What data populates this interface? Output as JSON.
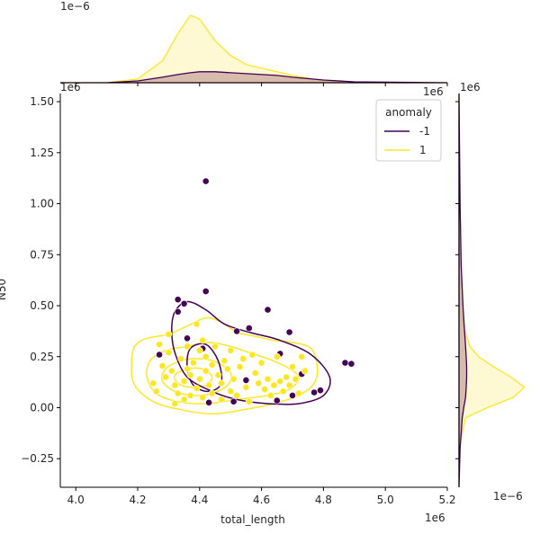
{
  "chart_data": {
    "type": "scatter",
    "title": "",
    "xlabel": "total_length",
    "ylabel": "N50",
    "xlim": [
      3950000,
      5200000
    ],
    "ylim": [
      -390000,
      1540000
    ],
    "x_ticks": [
      4000000,
      4200000,
      4400000,
      4600000,
      4800000,
      5000000,
      5200000
    ],
    "x_tick_labels": [
      "4.0",
      "4.2",
      "4.4",
      "4.6",
      "4.8",
      "5.0",
      "5.2"
    ],
    "y_ticks": [
      -250000,
      0,
      250000,
      500000,
      750000,
      1000000,
      1250000,
      1500000
    ],
    "y_tick_labels": [
      "−0.25",
      "0.00",
      "0.25",
      "0.50",
      "0.75",
      "1.00",
      "1.25",
      "1.50"
    ],
    "x_offset_label": "1e6",
    "y_offset_label": "1e6",
    "top_offset_label": "1e−6",
    "right_offset_label": "1e−6",
    "right_top_offset_label": "1e6",
    "legend": {
      "title": "anomaly",
      "position": "top-right"
    },
    "grid": false,
    "colors": {
      "-1": "#440154",
      "1": "#fde725",
      "fill_1": "#fdf6c4",
      "fill_-1": "#c9a7a0"
    },
    "series": [
      {
        "name": "-1",
        "points": [
          [
            4270000,
            260000
          ],
          [
            4330000,
            530000
          ],
          [
            4330000,
            470000
          ],
          [
            4350000,
            510000
          ],
          [
            4360000,
            340000
          ],
          [
            4410000,
            290000
          ],
          [
            4420000,
            1110000
          ],
          [
            4420000,
            570000
          ],
          [
            4430000,
            25000
          ],
          [
            4510000,
            30000
          ],
          [
            4520000,
            375000
          ],
          [
            4550000,
            135000
          ],
          [
            4560000,
            390000
          ],
          [
            4620000,
            480000
          ],
          [
            4650000,
            35000
          ],
          [
            4660000,
            265000
          ],
          [
            4690000,
            370000
          ],
          [
            4700000,
            60000
          ],
          [
            4730000,
            165000
          ],
          [
            4770000,
            75000
          ],
          [
            4790000,
            85000
          ],
          [
            4870000,
            220000
          ],
          [
            4890000,
            215000
          ]
        ]
      },
      {
        "name": "1",
        "points": [
          [
            4270000,
            310000
          ],
          [
            4280000,
            205000
          ],
          [
            4290000,
            150000
          ],
          [
            4300000,
            270000
          ],
          [
            4310000,
            180000
          ],
          [
            4320000,
            110000
          ],
          [
            4330000,
            70000
          ],
          [
            4340000,
            240000
          ],
          [
            4350000,
            130000
          ],
          [
            4350000,
            40000
          ],
          [
            4360000,
            300000
          ],
          [
            4360000,
            190000
          ],
          [
            4370000,
            60000
          ],
          [
            4370000,
            160000
          ],
          [
            4380000,
            220000
          ],
          [
            4390000,
            95000
          ],
          [
            4390000,
            410000
          ],
          [
            4400000,
            280000
          ],
          [
            4400000,
            140000
          ],
          [
            4410000,
            50000
          ],
          [
            4410000,
            330000
          ],
          [
            4420000,
            180000
          ],
          [
            4420000,
            250000
          ],
          [
            4430000,
            110000
          ],
          [
            4440000,
            70000
          ],
          [
            4440000,
            210000
          ],
          [
            4450000,
            300000
          ],
          [
            4460000,
            160000
          ],
          [
            4470000,
            40000
          ],
          [
            4470000,
            120000
          ],
          [
            4480000,
            230000
          ],
          [
            4490000,
            190000
          ],
          [
            4500000,
            80000
          ],
          [
            4500000,
            280000
          ],
          [
            4510000,
            140000
          ],
          [
            4520000,
            60000
          ],
          [
            4530000,
            200000
          ],
          [
            4540000,
            240000
          ],
          [
            4550000,
            100000
          ],
          [
            4560000,
            30000
          ],
          [
            4570000,
            260000
          ],
          [
            4580000,
            170000
          ],
          [
            4590000,
            120000
          ],
          [
            4600000,
            220000
          ],
          [
            4610000,
            90000
          ],
          [
            4620000,
            140000
          ],
          [
            4630000,
            60000
          ],
          [
            4640000,
            110000
          ],
          [
            4650000,
            250000
          ],
          [
            4660000,
            130000
          ],
          [
            4670000,
            80000
          ],
          [
            4680000,
            150000
          ],
          [
            4690000,
            110000
          ],
          [
            4700000,
            200000
          ],
          [
            4710000,
            140000
          ],
          [
            4720000,
            70000
          ],
          [
            4730000,
            250000
          ],
          [
            4740000,
            180000
          ],
          [
            4250000,
            120000
          ],
          [
            4260000,
            80000
          ],
          [
            4300000,
            360000
          ],
          [
            4320000,
            20000
          ]
        ]
      }
    ],
    "contours": [
      {
        "series": "1",
        "level": "outer",
        "points": [
          [
            4190000,
            300000
          ],
          [
            4230000,
            340000
          ],
          [
            4300000,
            360000
          ],
          [
            4360000,
            400000
          ],
          [
            4420000,
            440000
          ],
          [
            4470000,
            420000
          ],
          [
            4520000,
            370000
          ],
          [
            4580000,
            350000
          ],
          [
            4640000,
            330000
          ],
          [
            4700000,
            320000
          ],
          [
            4760000,
            290000
          ],
          [
            4780000,
            200000
          ],
          [
            4770000,
            120000
          ],
          [
            4720000,
            60000
          ],
          [
            4640000,
            20000
          ],
          [
            4540000,
            -10000
          ],
          [
            4440000,
            -30000
          ],
          [
            4340000,
            -10000
          ],
          [
            4250000,
            30000
          ],
          [
            4190000,
            110000
          ],
          [
            4180000,
            210000
          ]
        ]
      },
      {
        "series": "1",
        "level": "mid",
        "points": [
          [
            4240000,
            230000
          ],
          [
            4290000,
            280000
          ],
          [
            4360000,
            300000
          ],
          [
            4430000,
            320000
          ],
          [
            4500000,
            300000
          ],
          [
            4560000,
            270000
          ],
          [
            4620000,
            240000
          ],
          [
            4680000,
            200000
          ],
          [
            4720000,
            150000
          ],
          [
            4690000,
            90000
          ],
          [
            4620000,
            60000
          ],
          [
            4520000,
            40000
          ],
          [
            4420000,
            20000
          ],
          [
            4330000,
            30000
          ],
          [
            4260000,
            70000
          ],
          [
            4230000,
            150000
          ]
        ]
      },
      {
        "series": "1",
        "level": "inner",
        "points": [
          [
            4290000,
            190000
          ],
          [
            4340000,
            230000
          ],
          [
            4400000,
            240000
          ],
          [
            4460000,
            220000
          ],
          [
            4500000,
            170000
          ],
          [
            4490000,
            110000
          ],
          [
            4440000,
            70000
          ],
          [
            4380000,
            60000
          ],
          [
            4320000,
            80000
          ],
          [
            4280000,
            130000
          ]
        ]
      },
      {
        "series": "1",
        "level": "core",
        "points": [
          [
            4320000,
            160000
          ],
          [
            4360000,
            190000
          ],
          [
            4410000,
            190000
          ],
          [
            4440000,
            150000
          ],
          [
            4420000,
            110000
          ],
          [
            4370000,
            100000
          ],
          [
            4330000,
            120000
          ]
        ]
      },
      {
        "series": "-1",
        "level": "outer",
        "points": [
          [
            4320000,
            470000
          ],
          [
            4360000,
            520000
          ],
          [
            4420000,
            480000
          ],
          [
            4480000,
            410000
          ],
          [
            4560000,
            370000
          ],
          [
            4660000,
            330000
          ],
          [
            4760000,
            260000
          ],
          [
            4820000,
            150000
          ],
          [
            4800000,
            60000
          ],
          [
            4720000,
            20000
          ],
          [
            4620000,
            20000
          ],
          [
            4520000,
            40000
          ],
          [
            4440000,
            80000
          ],
          [
            4360000,
            150000
          ],
          [
            4320000,
            270000
          ],
          [
            4310000,
            380000
          ]
        ]
      },
      {
        "series": "-1",
        "level": "inner",
        "points": [
          [
            4370000,
            290000
          ],
          [
            4420000,
            310000
          ],
          [
            4460000,
            230000
          ],
          [
            4470000,
            120000
          ],
          [
            4430000,
            80000
          ],
          [
            4380000,
            110000
          ],
          [
            4360000,
            200000
          ]
        ]
      }
    ],
    "marginal_x": {
      "x": [
        3950000,
        4100000,
        4200000,
        4280000,
        4330000,
        4370000,
        4400000,
        4450000,
        4500000,
        4550000,
        4600000,
        4650000,
        4700000,
        4800000,
        4900000,
        5200000
      ],
      "density_1": [
        0,
        0,
        0.2,
        1.2,
        2.7,
        3.7,
        3.5,
        2.3,
        1.5,
        1.0,
        0.8,
        0.6,
        0.4,
        0.1,
        0,
        0
      ],
      "density_-1": [
        0,
        0,
        0.1,
        0.3,
        0.45,
        0.55,
        0.6,
        0.6,
        0.55,
        0.5,
        0.45,
        0.4,
        0.3,
        0.15,
        0.05,
        0
      ]
    },
    "marginal_y": {
      "y": [
        -390000,
        -200000,
        -50000,
        0,
        50000,
        100000,
        150000,
        200000,
        250000,
        300000,
        400000,
        500000,
        700000,
        1000000,
        1300000,
        1540000
      ],
      "density_1": [
        0,
        0,
        0.3,
        1.3,
        2.5,
        3.0,
        2.4,
        1.6,
        0.9,
        0.5,
        0.2,
        0.05,
        0,
        0,
        0,
        0
      ],
      "density_-1": [
        0,
        0.05,
        0.15,
        0.22,
        0.3,
        0.33,
        0.35,
        0.35,
        0.33,
        0.3,
        0.24,
        0.18,
        0.1,
        0.05,
        0.02,
        0
      ]
    }
  }
}
